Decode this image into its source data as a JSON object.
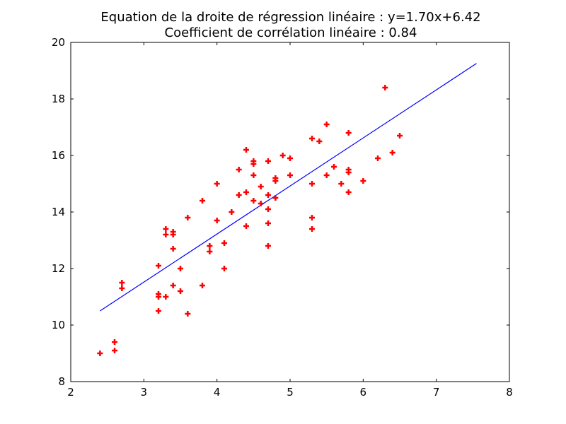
{
  "chart_data": {
    "type": "scatter",
    "title_line1": "Equation de la droite de régression linéaire : y=1.70x+6.42",
    "title_line2": "Coefficient de corrélation linéaire : 0.84",
    "xlabel": "",
    "ylabel": "",
    "xlim": [
      2,
      8
    ],
    "ylim": [
      8,
      20
    ],
    "xticks": [
      2,
      3,
      4,
      5,
      6,
      7,
      8
    ],
    "yticks": [
      8,
      10,
      12,
      14,
      16,
      18,
      20
    ],
    "grid": false,
    "points_color": "#ff0000",
    "line_color": "#0000ff",
    "regression": {
      "slope": 1.7,
      "intercept": 6.42,
      "x_range": [
        2.4,
        7.55
      ]
    },
    "points": [
      {
        "x": 2.4,
        "y": 9.0
      },
      {
        "x": 2.6,
        "y": 9.4
      },
      {
        "x": 2.6,
        "y": 9.1
      },
      {
        "x": 2.7,
        "y": 11.5
      },
      {
        "x": 2.7,
        "y": 11.3
      },
      {
        "x": 3.2,
        "y": 12.1
      },
      {
        "x": 3.2,
        "y": 11.1
      },
      {
        "x": 3.2,
        "y": 11.0
      },
      {
        "x": 3.2,
        "y": 10.5
      },
      {
        "x": 3.3,
        "y": 13.4
      },
      {
        "x": 3.3,
        "y": 13.2
      },
      {
        "x": 3.3,
        "y": 11.0
      },
      {
        "x": 3.4,
        "y": 13.3
      },
      {
        "x": 3.4,
        "y": 13.2
      },
      {
        "x": 3.4,
        "y": 12.7
      },
      {
        "x": 3.4,
        "y": 11.4
      },
      {
        "x": 3.5,
        "y": 12.0
      },
      {
        "x": 3.5,
        "y": 11.2
      },
      {
        "x": 3.6,
        "y": 13.8
      },
      {
        "x": 3.6,
        "y": 10.4
      },
      {
        "x": 3.8,
        "y": 14.4
      },
      {
        "x": 3.8,
        "y": 11.4
      },
      {
        "x": 3.9,
        "y": 12.8
      },
      {
        "x": 3.9,
        "y": 12.6
      },
      {
        "x": 4.0,
        "y": 15.0
      },
      {
        "x": 4.0,
        "y": 13.7
      },
      {
        "x": 4.1,
        "y": 12.9
      },
      {
        "x": 4.1,
        "y": 12.0
      },
      {
        "x": 4.2,
        "y": 14.0
      },
      {
        "x": 4.3,
        "y": 15.5
      },
      {
        "x": 4.3,
        "y": 14.6
      },
      {
        "x": 4.4,
        "y": 16.2
      },
      {
        "x": 4.4,
        "y": 14.7
      },
      {
        "x": 4.4,
        "y": 13.5
      },
      {
        "x": 4.5,
        "y": 15.8
      },
      {
        "x": 4.5,
        "y": 15.7
      },
      {
        "x": 4.5,
        "y": 15.3
      },
      {
        "x": 4.5,
        "y": 14.4
      },
      {
        "x": 4.6,
        "y": 14.9
      },
      {
        "x": 4.6,
        "y": 14.3
      },
      {
        "x": 4.7,
        "y": 15.8
      },
      {
        "x": 4.7,
        "y": 14.6
      },
      {
        "x": 4.7,
        "y": 14.1
      },
      {
        "x": 4.7,
        "y": 13.6
      },
      {
        "x": 4.7,
        "y": 12.8
      },
      {
        "x": 4.8,
        "y": 15.2
      },
      {
        "x": 4.8,
        "y": 15.1
      },
      {
        "x": 4.8,
        "y": 14.5
      },
      {
        "x": 4.9,
        "y": 16.0
      },
      {
        "x": 5.0,
        "y": 15.9
      },
      {
        "x": 5.0,
        "y": 15.3
      },
      {
        "x": 5.3,
        "y": 16.6
      },
      {
        "x": 5.3,
        "y": 15.0
      },
      {
        "x": 5.3,
        "y": 13.8
      },
      {
        "x": 5.3,
        "y": 13.4
      },
      {
        "x": 5.4,
        "y": 16.5
      },
      {
        "x": 5.5,
        "y": 17.1
      },
      {
        "x": 5.5,
        "y": 15.3
      },
      {
        "x": 5.6,
        "y": 15.6
      },
      {
        "x": 5.7,
        "y": 15.0
      },
      {
        "x": 5.8,
        "y": 16.8
      },
      {
        "x": 5.8,
        "y": 15.5
      },
      {
        "x": 5.8,
        "y": 15.4
      },
      {
        "x": 5.8,
        "y": 14.7
      },
      {
        "x": 6.0,
        "y": 15.1
      },
      {
        "x": 6.2,
        "y": 15.9
      },
      {
        "x": 6.3,
        "y": 18.4
      },
      {
        "x": 6.4,
        "y": 16.1
      },
      {
        "x": 6.5,
        "y": 16.7
      }
    ]
  }
}
